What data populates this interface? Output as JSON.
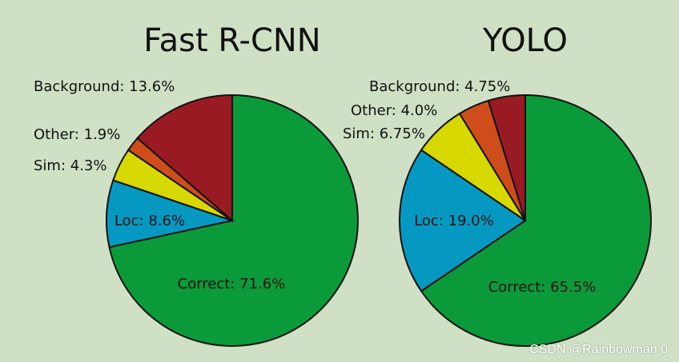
{
  "colors": {
    "correct": "#0b9a3a",
    "loc": "#0599c2",
    "sim": "#d6d800",
    "other": "#cf4d1a",
    "background": "#9a1a24"
  },
  "chart_data": [
    {
      "type": "pie",
      "title": "Fast R-CNN",
      "slices": [
        {
          "key": "correct",
          "value": 71.6,
          "label": "Correct: 71.6%"
        },
        {
          "key": "loc",
          "value": 8.6,
          "label": "Loc: 8.6%"
        },
        {
          "key": "sim",
          "value": 4.3,
          "label": "Sim: 4.3%"
        },
        {
          "key": "other",
          "value": 1.9,
          "label": "Other: 1.9%"
        },
        {
          "key": "background",
          "value": 13.6,
          "label": "Background: 13.6%"
        }
      ]
    },
    {
      "type": "pie",
      "title": "YOLO",
      "slices": [
        {
          "key": "correct",
          "value": 65.5,
          "label": "Correct: 65.5%"
        },
        {
          "key": "loc",
          "value": 19.0,
          "label": "Loc: 19.0%"
        },
        {
          "key": "sim",
          "value": 6.75,
          "label": "Sim: 6.75%"
        },
        {
          "key": "other",
          "value": 4.0,
          "label": "Other: 4.0%"
        },
        {
          "key": "background",
          "value": 4.75,
          "label": "Background: 4.75%"
        }
      ]
    }
  ],
  "watermark": "CSDN @Rainbowman 0"
}
